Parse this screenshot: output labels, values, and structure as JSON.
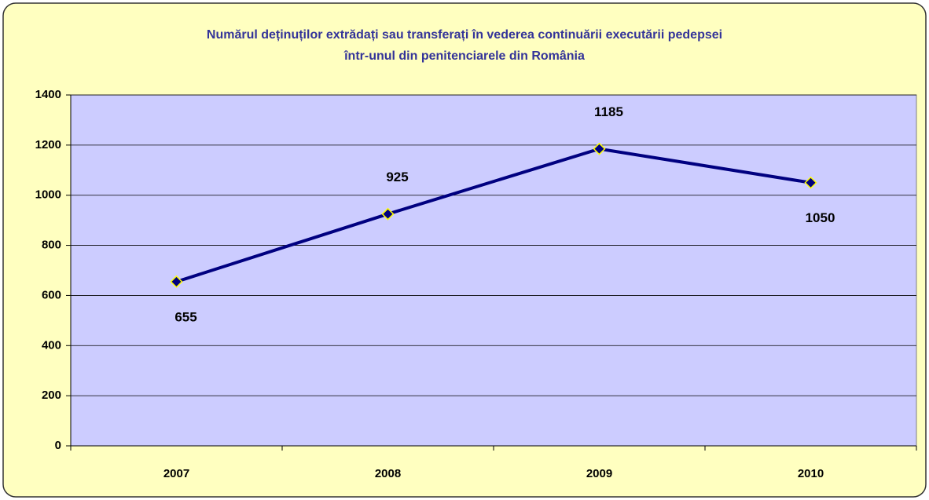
{
  "chart_data": {
    "type": "line",
    "title": [
      "Numărul deținuților extrădați sau transferați în vederea continuării executării pedepsei",
      "într-unul din penitenciarele din România"
    ],
    "categories": [
      "2007",
      "2008",
      "2009",
      "2010"
    ],
    "values": [
      655,
      925,
      1185,
      1050
    ],
    "color": "#000080",
    "ylim": [
      0,
      1400
    ],
    "yticks": [
      0,
      200,
      400,
      600,
      800,
      1000,
      1200,
      1400
    ],
    "grid": true
  }
}
